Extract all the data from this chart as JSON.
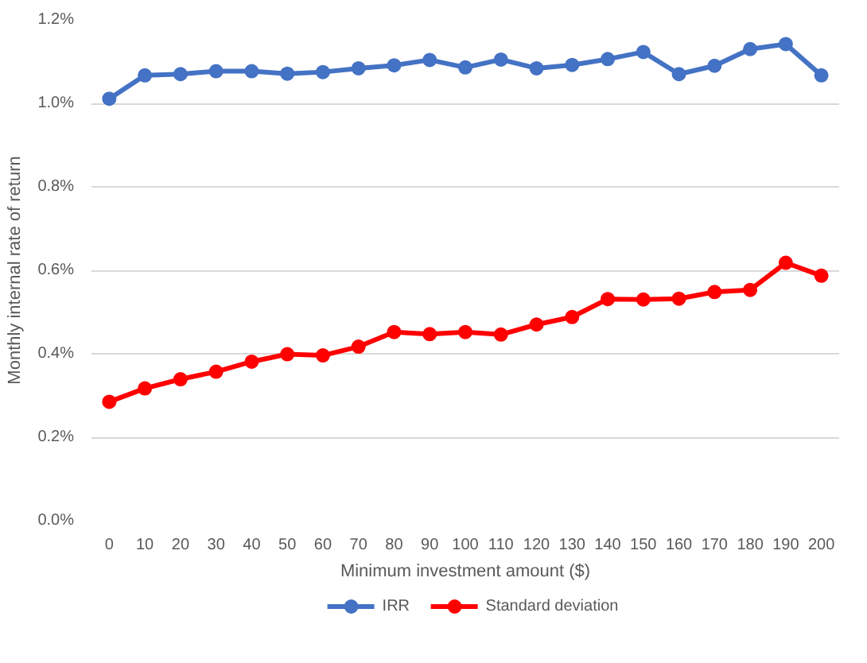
{
  "chart_data": {
    "type": "line",
    "xlabel": "Minimum investment amount ($)",
    "ylabel": "Monthly internal rate of return",
    "categories": [
      "0",
      "10",
      "20",
      "30",
      "40",
      "50",
      "60",
      "70",
      "80",
      "90",
      "100",
      "110",
      "120",
      "130",
      "140",
      "150",
      "160",
      "170",
      "180",
      "190",
      "200"
    ],
    "series": [
      {
        "name": "IRR",
        "color": "#4472c4",
        "values": [
          1.011,
          1.067,
          1.07,
          1.077,
          1.077,
          1.071,
          1.075,
          1.084,
          1.091,
          1.104,
          1.086,
          1.105,
          1.084,
          1.092,
          1.106,
          1.123,
          1.07,
          1.09,
          1.13,
          1.142,
          1.067
        ]
      },
      {
        "name": "Standard deviation",
        "color": "#ff0000",
        "values": [
          0.285,
          0.317,
          0.339,
          0.357,
          0.381,
          0.399,
          0.396,
          0.417,
          0.452,
          0.447,
          0.452,
          0.446,
          0.47,
          0.488,
          0.531,
          0.53,
          0.532,
          0.548,
          0.553,
          0.618,
          0.587
        ]
      }
    ],
    "ylim": [
      0,
      1.2
    ],
    "yticks": [
      {
        "value": 0,
        "label": "0.0%"
      },
      {
        "value": 0.2,
        "label": "0.2%"
      },
      {
        "value": 0.4,
        "label": "0.4%"
      },
      {
        "value": 0.6,
        "label": "0.6%"
      },
      {
        "value": 0.8,
        "label": "0.8%"
      },
      {
        "value": 1.0,
        "label": "1.0%"
      },
      {
        "value": 1.2,
        "label": "1.2%"
      }
    ],
    "grid": "y",
    "legend": "bottom",
    "marker": "circle",
    "line_style": "solid"
  }
}
